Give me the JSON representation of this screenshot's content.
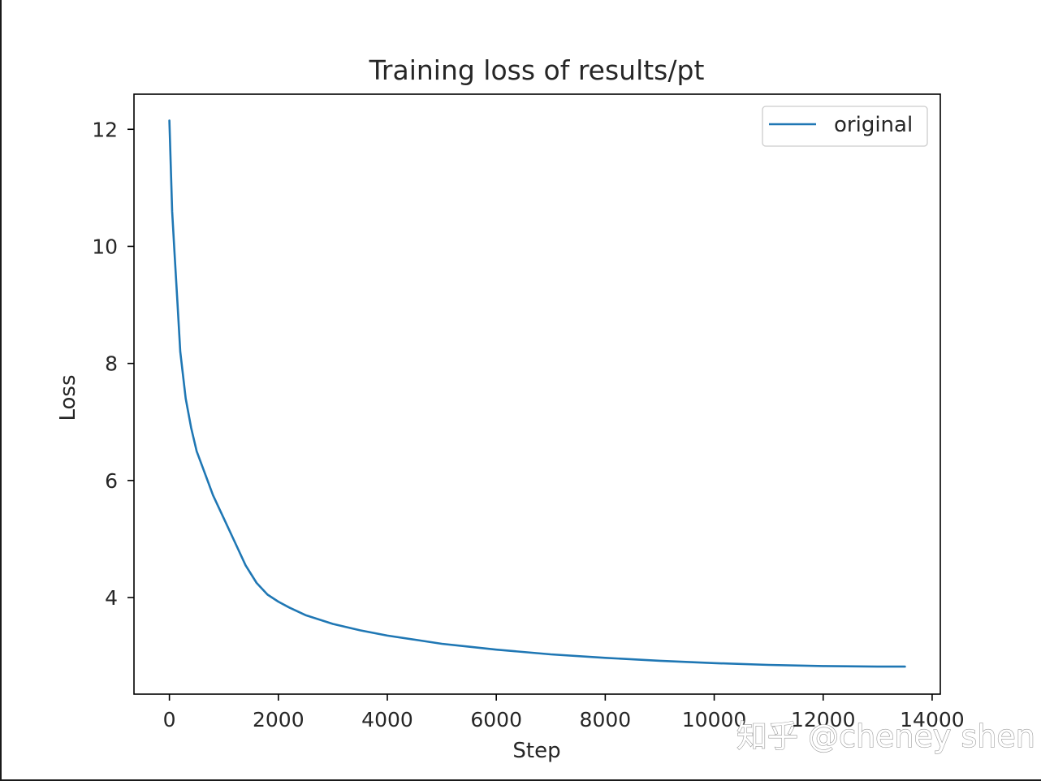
{
  "chart_data": {
    "type": "line",
    "title": "Training loss of results/pt",
    "xlabel": "Step",
    "ylabel": "Loss",
    "xlim": [
      -650,
      14150
    ],
    "ylim": [
      2.35,
      12.6
    ],
    "xticks": [
      0,
      2000,
      4000,
      6000,
      8000,
      10000,
      12000,
      14000
    ],
    "yticks": [
      4,
      6,
      8,
      10,
      12
    ],
    "grid": false,
    "legend": {
      "position": "upper-right",
      "entries": [
        "original"
      ]
    },
    "series": [
      {
        "name": "original",
        "color": "#1f77b4",
        "x": [
          0,
          50,
          100,
          150,
          200,
          300,
          400,
          500,
          600,
          800,
          1000,
          1200,
          1400,
          1600,
          1800,
          2000,
          2200,
          2500,
          3000,
          3500,
          4000,
          4500,
          5000,
          5500,
          6000,
          7000,
          8000,
          9000,
          10000,
          11000,
          12000,
          13000,
          13500
        ],
        "y": [
          12.15,
          10.6,
          9.8,
          9.0,
          8.2,
          7.4,
          6.9,
          6.5,
          6.25,
          5.75,
          5.35,
          4.95,
          4.55,
          4.25,
          4.05,
          3.93,
          3.83,
          3.7,
          3.55,
          3.44,
          3.35,
          3.28,
          3.21,
          3.16,
          3.11,
          3.03,
          2.97,
          2.92,
          2.88,
          2.85,
          2.83,
          2.82,
          2.82
        ]
      }
    ]
  },
  "watermark": "知乎 @cheney shen"
}
